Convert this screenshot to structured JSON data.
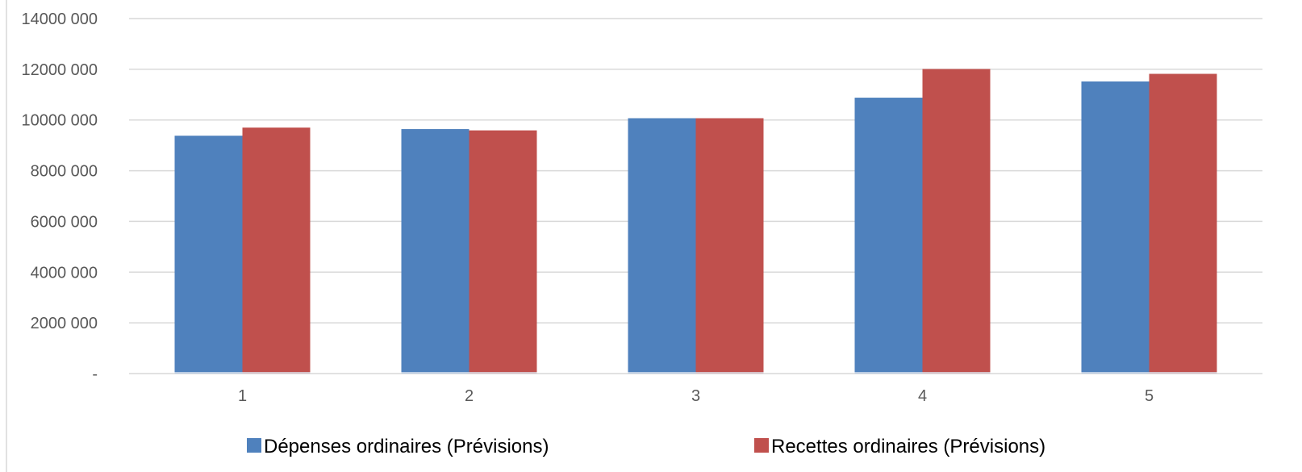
{
  "chart_data": {
    "type": "bar",
    "title": "",
    "xlabel": "",
    "ylabel": "",
    "categories": [
      "1",
      "2",
      "3",
      "4",
      "5"
    ],
    "series": [
      {
        "name": "Dépenses ordinaires (Prévisions)",
        "color": "#4F81BD",
        "values": [
          9380000,
          9640000,
          10070000,
          10880000,
          11520000
        ]
      },
      {
        "name": "Recettes ordinaires (Prévisions)",
        "color": "#C0504D",
        "values": [
          9700000,
          9590000,
          10070000,
          12010000,
          11820000
        ]
      }
    ],
    "ylim": [
      0,
      14000000
    ],
    "yticks": [
      0,
      2000000,
      4000000,
      6000000,
      8000000,
      10000000,
      12000000,
      14000000
    ],
    "ytick_labels": [
      "-",
      "2000 000",
      "4000 000",
      "6000 000",
      "8000 000",
      "10000 000",
      "12000 000",
      "14000 000"
    ],
    "grid": true,
    "legend_position": "bottom",
    "gridline_color": "#D9D9D9"
  }
}
